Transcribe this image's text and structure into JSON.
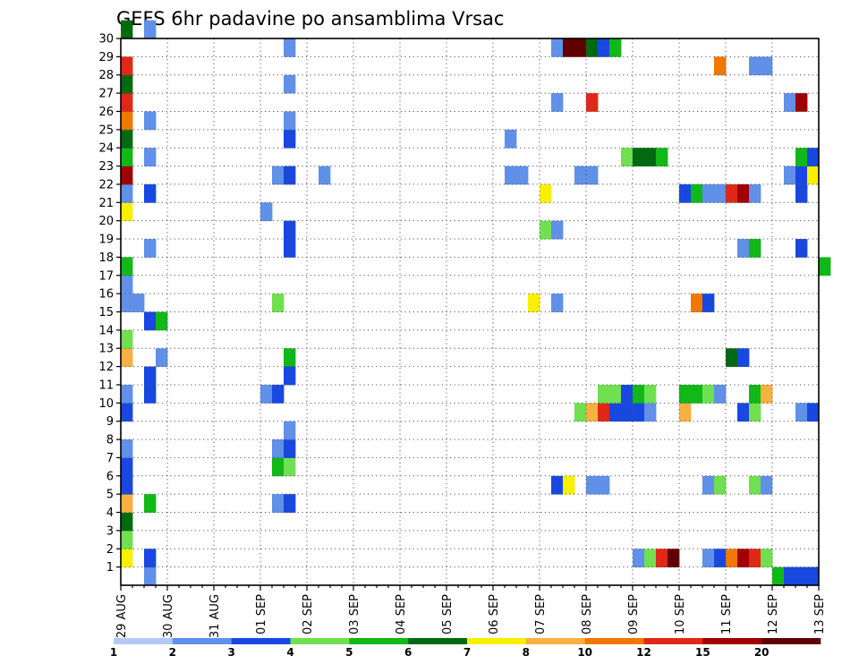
{
  "chart_data": {
    "type": "heatmap",
    "title": "GEFS 6hr padavine po ansamblima Vrsac",
    "xlabel": "",
    "ylabel": "",
    "x_tick_labels": [
      "29 AUG",
      "30 AUG",
      "31 AUG",
      "01 SEP",
      "02 SEP",
      "03 SEP",
      "04 SEP",
      "05 SEP",
      "06 SEP",
      "07 SEP",
      "08 SEP",
      "09 SEP",
      "10 SEP",
      "11 SEP",
      "12 SEP",
      "13 SEP"
    ],
    "x_unit": "6h steps since 29 AUG 00Z",
    "xlim": [
      0,
      60
    ],
    "y_tick_labels": [
      "1",
      "2",
      "3",
      "4",
      "5",
      "6",
      "7",
      "8",
      "9",
      "10",
      "11",
      "12",
      "13",
      "14",
      "15",
      "16",
      "17",
      "18",
      "19",
      "20",
      "21",
      "22",
      "23",
      "24",
      "25",
      "26",
      "27",
      "28",
      "29",
      "30"
    ],
    "ylim": [
      0,
      30
    ],
    "grid": true,
    "legend_position": "bottom",
    "legend_levels": [
      "1",
      "2",
      "3",
      "4",
      "5",
      "6",
      "7",
      "8",
      "10",
      "12",
      "15",
      "20"
    ],
    "legend_colors": [
      "#b4c8f8",
      "#6090e8",
      "#1848e0",
      "#70e050",
      "#10b818",
      "#006a10",
      "#f8f000",
      "#f8b040",
      "#f07800",
      "#e02818",
      "#a00000",
      "#600000"
    ],
    "cells": [
      [
        0,
        1,
        6
      ],
      [
        0,
        2,
        3
      ],
      [
        0,
        3,
        5
      ],
      [
        0,
        4,
        7
      ],
      [
        0,
        5,
        2
      ],
      [
        0,
        6,
        2
      ],
      [
        0,
        7,
        1
      ],
      [
        0,
        9,
        2
      ],
      [
        0,
        10,
        1
      ],
      [
        0,
        12,
        7
      ],
      [
        0,
        13,
        3
      ],
      [
        0,
        15,
        1
      ],
      [
        0,
        16,
        1
      ],
      [
        0,
        17,
        4
      ],
      [
        0,
        20,
        6
      ],
      [
        0,
        21,
        1
      ],
      [
        0,
        22,
        10
      ],
      [
        0,
        23,
        4
      ],
      [
        0,
        24,
        5
      ],
      [
        0,
        25,
        8
      ],
      [
        0,
        26,
        9
      ],
      [
        0,
        27,
        5
      ],
      [
        0,
        28,
        9
      ],
      [
        0,
        30,
        5
      ],
      [
        1,
        15,
        1
      ],
      [
        2,
        0,
        1
      ],
      [
        2,
        1,
        2
      ],
      [
        2,
        4,
        4
      ],
      [
        2,
        10,
        2
      ],
      [
        2,
        11,
        2
      ],
      [
        2,
        14,
        2
      ],
      [
        2,
        18,
        1
      ],
      [
        2,
        21,
        2
      ],
      [
        2,
        23,
        1
      ],
      [
        2,
        25,
        1
      ],
      [
        2,
        30,
        1
      ],
      [
        3,
        12,
        1
      ],
      [
        3,
        14,
        4
      ],
      [
        12,
        10,
        1
      ],
      [
        12,
        20,
        1
      ],
      [
        13,
        4,
        1
      ],
      [
        13,
        6,
        4
      ],
      [
        13,
        7,
        1
      ],
      [
        13,
        10,
        2
      ],
      [
        13,
        15,
        3
      ],
      [
        13,
        22,
        1
      ],
      [
        14,
        4,
        2
      ],
      [
        14,
        6,
        3
      ],
      [
        14,
        7,
        2
      ],
      [
        14,
        8,
        1
      ],
      [
        14,
        12,
        4
      ],
      [
        14,
        11,
        2
      ],
      [
        14,
        18,
        2
      ],
      [
        14,
        19,
        2
      ],
      [
        14,
        22,
        2
      ],
      [
        14,
        24,
        2
      ],
      [
        14,
        25,
        1
      ],
      [
        14,
        27,
        1
      ],
      [
        14,
        29,
        1
      ],
      [
        17,
        22,
        1
      ],
      [
        33,
        22,
        1
      ],
      [
        33,
        24,
        1
      ],
      [
        34,
        22,
        1
      ],
      [
        35,
        15,
        6
      ],
      [
        36,
        19,
        3
      ],
      [
        36,
        21,
        6
      ],
      [
        37,
        5,
        2
      ],
      [
        37,
        15,
        1
      ],
      [
        37,
        19,
        1
      ],
      [
        37,
        26,
        1
      ],
      [
        37,
        29,
        1
      ],
      [
        38,
        5,
        6
      ],
      [
        38,
        29,
        11
      ],
      [
        39,
        9,
        3
      ],
      [
        39,
        22,
        1
      ],
      [
        39,
        29,
        11
      ],
      [
        40,
        5,
        1
      ],
      [
        40,
        9,
        7
      ],
      [
        40,
        22,
        1
      ],
      [
        40,
        26,
        9
      ],
      [
        40,
        29,
        5
      ],
      [
        41,
        5,
        1
      ],
      [
        41,
        9,
        9
      ],
      [
        41,
        10,
        3
      ],
      [
        41,
        29,
        2
      ],
      [
        42,
        9,
        2
      ],
      [
        42,
        10,
        3
      ],
      [
        42,
        29,
        4
      ],
      [
        43,
        9,
        2
      ],
      [
        43,
        10,
        2
      ],
      [
        43,
        23,
        3
      ],
      [
        44,
        1,
        1
      ],
      [
        44,
        9,
        2
      ],
      [
        44,
        10,
        4
      ],
      [
        44,
        23,
        5
      ],
      [
        45,
        1,
        3
      ],
      [
        45,
        9,
        1
      ],
      [
        45,
        10,
        3
      ],
      [
        45,
        23,
        5
      ],
      [
        46,
        1,
        9
      ],
      [
        46,
        23,
        4
      ],
      [
        47,
        1,
        11
      ],
      [
        48,
        9,
        7
      ],
      [
        48,
        10,
        4
      ],
      [
        48,
        21,
        2
      ],
      [
        49,
        10,
        4
      ],
      [
        49,
        15,
        8
      ],
      [
        49,
        21,
        4
      ],
      [
        50,
        5,
        1
      ],
      [
        50,
        1,
        1
      ],
      [
        50,
        10,
        3
      ],
      [
        50,
        15,
        2
      ],
      [
        50,
        21,
        1
      ],
      [
        51,
        1,
        2
      ],
      [
        51,
        5,
        3
      ],
      [
        51,
        10,
        1
      ],
      [
        51,
        21,
        1
      ],
      [
        51,
        28,
        8
      ],
      [
        52,
        1,
        8
      ],
      [
        52,
        12,
        5
      ],
      [
        52,
        21,
        9
      ],
      [
        53,
        1,
        10
      ],
      [
        53,
        9,
        2
      ],
      [
        53,
        12,
        2
      ],
      [
        53,
        18,
        1
      ],
      [
        53,
        21,
        10
      ],
      [
        54,
        1,
        9
      ],
      [
        54,
        5,
        3
      ],
      [
        54,
        9,
        3
      ],
      [
        54,
        10,
        4
      ],
      [
        54,
        18,
        4
      ],
      [
        54,
        21,
        1
      ],
      [
        54,
        28,
        1
      ],
      [
        55,
        1,
        3
      ],
      [
        55,
        5,
        1
      ],
      [
        55,
        10,
        7
      ],
      [
        55,
        28,
        1
      ],
      [
        56,
        0,
        4
      ],
      [
        57,
        0,
        2
      ],
      [
        57,
        22,
        1
      ],
      [
        57,
        26,
        1
      ],
      [
        58,
        0,
        2
      ],
      [
        58,
        9,
        1
      ],
      [
        58,
        18,
        2
      ],
      [
        58,
        21,
        2
      ],
      [
        58,
        22,
        2
      ],
      [
        58,
        23,
        4
      ],
      [
        58,
        26,
        10
      ],
      [
        59,
        0,
        2
      ],
      [
        59,
        9,
        2
      ],
      [
        59,
        22,
        6
      ],
      [
        59,
        23,
        2
      ],
      [
        60,
        17,
        4
      ]
    ]
  }
}
